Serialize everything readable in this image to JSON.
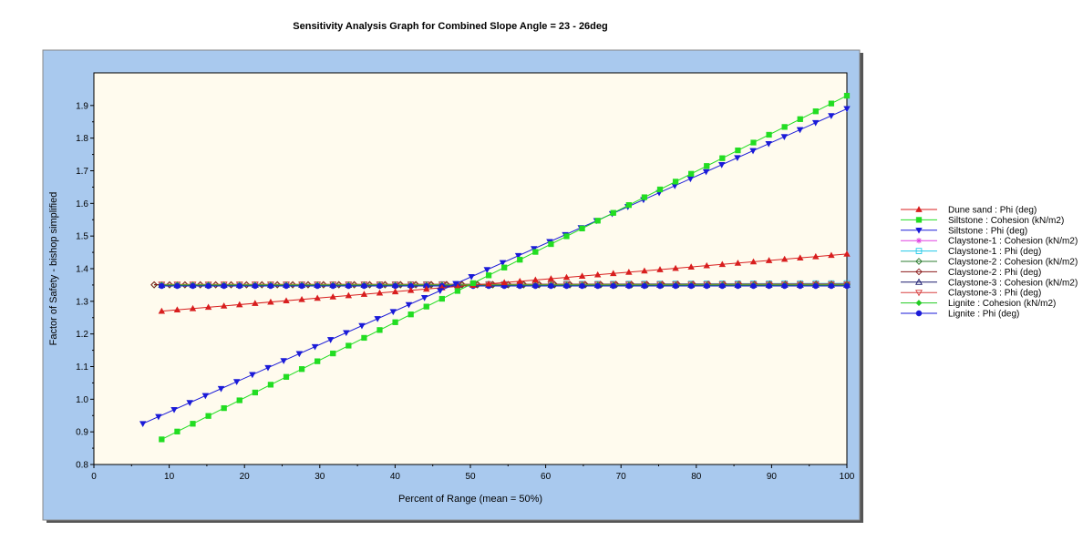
{
  "chart_data": {
    "type": "line",
    "title": "Sensitivity Analysis Graph for Combined Slope Angle = 23 - 26deg",
    "xlabel": "Percent of Range (mean = 50%)",
    "ylabel": "Factor of Safety - bishop simplified",
    "xlim": [
      0,
      100
    ],
    "ylim": [
      0.8,
      2.0
    ],
    "xticks": [
      0,
      10,
      20,
      30,
      40,
      50,
      60,
      70,
      80,
      90,
      100
    ],
    "yticks": [
      0.8,
      0.9,
      1.0,
      1.1,
      1.2,
      1.3,
      1.4,
      1.5,
      1.6,
      1.7,
      1.8,
      1.9
    ],
    "grid": false,
    "legend_position": "right",
    "series": [
      {
        "name": "Dune sand : Phi (deg)",
        "color": "#d81e1e",
        "marker": "triangle-up-filled",
        "x_start": 9,
        "y_start": 1.27,
        "x_end": 100,
        "y_end": 1.445,
        "points": 45
      },
      {
        "name": "Siltstone : Cohesion (kN/m2)",
        "color": "#22dd22",
        "marker": "square-filled",
        "x_start": 9,
        "y_start": 0.877,
        "x_end": 100,
        "y_end": 1.93,
        "points": 45
      },
      {
        "name": "Siltstone : Phi (deg)",
        "color": "#1a1ad8",
        "marker": "triangle-down-filled",
        "x_start": 6.5,
        "y_start": 0.925,
        "x_end": 100,
        "y_end": 1.89,
        "points": 46
      },
      {
        "name": "Claystone-1 : Cohesion (kN/m2)",
        "color": "#e040e0",
        "marker": "asterisk",
        "x_start": 9,
        "y_start": 1.35,
        "x_end": 100,
        "y_end": 1.35,
        "points": 45
      },
      {
        "name": "Claystone-1 : Phi (deg)",
        "color": "#20c8e8",
        "marker": "square-open",
        "x_start": 9,
        "y_start": 1.35,
        "x_end": 100,
        "y_end": 1.355,
        "points": 45
      },
      {
        "name": "Claystone-2 : Cohesion (kN/m2)",
        "color": "#2e7d32",
        "marker": "diamond-open",
        "x_start": 8,
        "y_start": 1.35,
        "x_end": 100,
        "y_end": 1.35,
        "points": 46
      },
      {
        "name": "Claystone-2 : Phi (deg)",
        "color": "#8b1c1c",
        "marker": "diamond-open",
        "x_start": 8,
        "y_start": 1.351,
        "x_end": 100,
        "y_end": 1.353,
        "points": 46
      },
      {
        "name": "Claystone-3 : Cohesion (kN/m2)",
        "color": "#1a1a6e",
        "marker": "triangle-up-open",
        "x_start": 9,
        "y_start": 1.35,
        "x_end": 100,
        "y_end": 1.35,
        "points": 45
      },
      {
        "name": "Claystone-3 : Phi (deg)",
        "color": "#d84040",
        "marker": "triangle-down-open",
        "x_start": 9,
        "y_start": 1.352,
        "x_end": 100,
        "y_end": 1.352,
        "points": 45
      },
      {
        "name": "Lignite : Cohesion (kN/m2)",
        "color": "#22cc22",
        "marker": "diamond-filled",
        "x_start": 9,
        "y_start": 1.35,
        "x_end": 100,
        "y_end": 1.35,
        "points": 45
      },
      {
        "name": "Lignite : Phi (deg)",
        "color": "#1a1ad8",
        "marker": "circle-filled",
        "x_start": 9,
        "y_start": 1.347,
        "x_end": 100,
        "y_end": 1.347,
        "points": 45
      }
    ]
  },
  "colors": {
    "frame": "#a9c9ee",
    "plot_bg": "#fffbee"
  }
}
